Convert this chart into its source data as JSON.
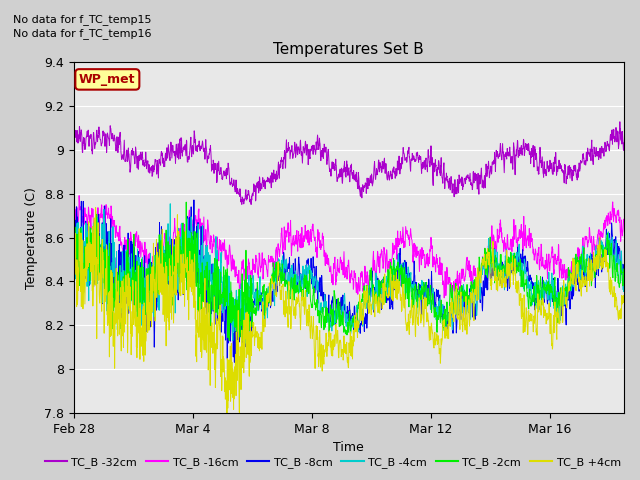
{
  "title": "Temperatures Set B",
  "xlabel": "Time",
  "ylabel": "Temperature (C)",
  "ylim": [
    7.8,
    9.4
  ],
  "annotation1": "No data for f_TC_temp15",
  "annotation2": "No data for f_TC_temp16",
  "wp_met_label": "WP_met",
  "wp_met_color": "#aa0000",
  "wp_met_bg": "#ffff99",
  "fig_bg": "#d0d0d0",
  "plot_bg": "#e8e8e8",
  "grid_color": "#ffffff",
  "series": [
    {
      "label": "TC_B -32cm",
      "color": "#aa00cc",
      "base": 8.95,
      "noise_scale": 0.045,
      "trend_amp": 0.05,
      "daily_amp": 0.02,
      "medium_amp": 0.06,
      "phase": 0.0
    },
    {
      "label": "TC_B -16cm",
      "color": "#ff00ff",
      "base": 8.53,
      "noise_scale": 0.055,
      "trend_amp": 0.05,
      "daily_amp": 0.03,
      "medium_amp": 0.09,
      "phase": 0.3
    },
    {
      "label": "TC_B -8cm",
      "color": "#0000ee",
      "base": 8.38,
      "noise_scale": 0.065,
      "trend_amp": 0.06,
      "daily_amp": 0.04,
      "medium_amp": 0.1,
      "phase": 0.6
    },
    {
      "label": "TC_B -4cm",
      "color": "#00cccc",
      "base": 8.38,
      "noise_scale": 0.06,
      "trend_amp": 0.06,
      "daily_amp": 0.04,
      "medium_amp": 0.1,
      "phase": 0.9
    },
    {
      "label": "TC_B -2cm",
      "color": "#00ee00",
      "base": 8.37,
      "noise_scale": 0.06,
      "trend_amp": 0.06,
      "daily_amp": 0.04,
      "medium_amp": 0.09,
      "phase": 1.2
    },
    {
      "label": "TC_B +4cm",
      "color": "#dddd00",
      "base": 8.28,
      "noise_scale": 0.075,
      "trend_amp": 0.07,
      "daily_amp": 0.05,
      "medium_amp": 0.12,
      "phase": 1.5
    }
  ],
  "xtick_positions": [
    0,
    4,
    8,
    12,
    16
  ],
  "xtick_labels": [
    "Feb 28",
    "Mar 4",
    "Mar 8",
    "Mar 12",
    "Mar 16"
  ],
  "ytick_positions": [
    7.8,
    8.0,
    8.2,
    8.4,
    8.6,
    8.8,
    9.0,
    9.2,
    9.4
  ],
  "n_points": 2000,
  "total_days": 18.5
}
